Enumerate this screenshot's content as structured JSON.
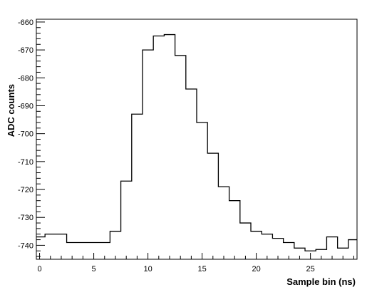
{
  "chart_data": {
    "type": "line",
    "style": "step histogram",
    "xlabel": "Sample bin (ns)",
    "ylabel": "ADC counts",
    "xlim": [
      -0.3,
      29.3
    ],
    "ylim": [
      -745,
      -659
    ],
    "x_ticks": [
      0,
      5,
      10,
      15,
      20,
      25
    ],
    "y_ticks": [
      -740,
      -730,
      -720,
      -710,
      -700,
      -690,
      -680,
      -670,
      -660
    ],
    "grid": false,
    "series": [
      {
        "bin_edges": [
          -0.3,
          0.5,
          2.5,
          6.5,
          7.5,
          8.5,
          9.5,
          10.5,
          11.5,
          12.5,
          13.5,
          14.5,
          15.5,
          16.5,
          17.5,
          18.5,
          19.5,
          20.5,
          21.5,
          22.5,
          23.5,
          24.5,
          25.5,
          26.5,
          27.5,
          28.5,
          29.3
        ],
        "values": [
          -737,
          -736,
          -739,
          -735,
          -717,
          -693,
          -670,
          -665,
          -664.5,
          -672,
          -684,
          -696,
          -707,
          -719,
          -724,
          -732,
          -735,
          -736,
          -737.5,
          -739,
          -741,
          -742,
          -741.5,
          -737,
          -741,
          -738
        ],
        "color": "#000000"
      }
    ]
  }
}
